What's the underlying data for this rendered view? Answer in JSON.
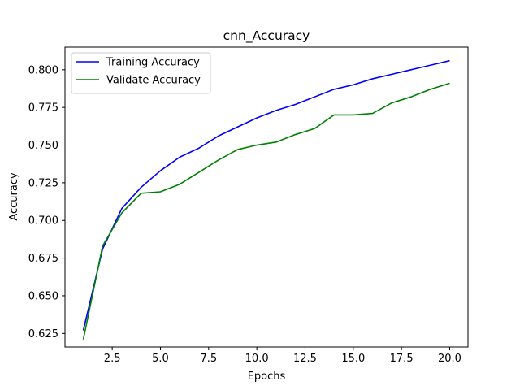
{
  "chart_data": {
    "type": "line",
    "title": "cnn_Accuracy",
    "xlabel": "Epochs",
    "ylabel": "Accuracy",
    "xlim": [
      0.05,
      20.95
    ],
    "ylim": [
      0.616,
      0.815
    ],
    "xticks": [
      2.5,
      5.0,
      7.5,
      10.0,
      12.5,
      15.0,
      17.5,
      20.0
    ],
    "xtick_labels": [
      "2.5",
      "5.0",
      "7.5",
      "10.0",
      "12.5",
      "15.0",
      "17.5",
      "20.0"
    ],
    "yticks": [
      0.625,
      0.65,
      0.675,
      0.7,
      0.725,
      0.75,
      0.775,
      0.8
    ],
    "ytick_labels": [
      "0.625",
      "0.650",
      "0.675",
      "0.700",
      "0.725",
      "0.750",
      "0.775",
      "0.800"
    ],
    "grid": false,
    "legend_position": "top-left",
    "x": [
      1,
      2,
      3,
      4,
      5,
      6,
      7,
      8,
      9,
      10,
      11,
      12,
      13,
      14,
      15,
      16,
      17,
      18,
      19,
      20
    ],
    "series": [
      {
        "name": "Training Accuracy",
        "color": "#0000ff",
        "values": [
          0.627,
          0.681,
          0.708,
          0.722,
          0.733,
          0.742,
          0.748,
          0.756,
          0.762,
          0.768,
          0.773,
          0.777,
          0.782,
          0.787,
          0.79,
          0.794,
          0.797,
          0.8,
          0.803,
          0.806
        ]
      },
      {
        "name": "Validate Accuracy",
        "color": "#008000",
        "values": [
          0.621,
          0.683,
          0.705,
          0.718,
          0.719,
          0.724,
          0.732,
          0.74,
          0.747,
          0.75,
          0.752,
          0.757,
          0.761,
          0.77,
          0.77,
          0.771,
          0.778,
          0.782,
          0.787,
          0.791
        ]
      }
    ]
  }
}
